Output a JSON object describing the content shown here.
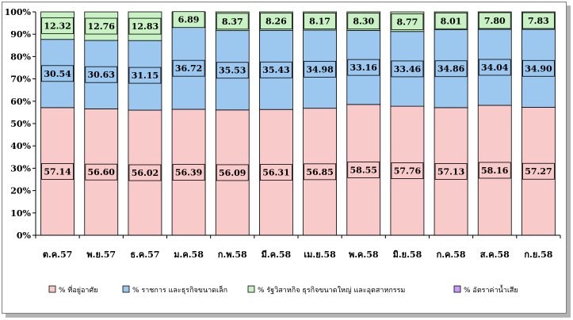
{
  "chart_data": {
    "type": "bar",
    "stacked": true,
    "percent": true,
    "title": "",
    "xlabel": "",
    "ylabel": "",
    "ylim": [
      0,
      100
    ],
    "yticks": [
      "0%",
      "10%",
      "20%",
      "30%",
      "40%",
      "50%",
      "60%",
      "70%",
      "80%",
      "90%",
      "100%"
    ],
    "categories": [
      "ต.ค.57",
      "พ.ย.57",
      "ธ.ค.57",
      "ม.ค.58",
      "ก.พ.58",
      "มี.ค.58",
      "เม.ย.58",
      "พ.ค.58",
      "มิ.ย.58",
      "ก.ค.58",
      "ส.ค.58",
      "ก.ย.58"
    ],
    "series": [
      {
        "name": "% ที่อยู่อาศัย",
        "color": "#f9caca",
        "values": [
          57.14,
          56.6,
          56.02,
          56.39,
          56.09,
          56.31,
          56.85,
          58.55,
          57.76,
          57.13,
          58.16,
          57.27
        ]
      },
      {
        "name": "% ราชการ และธุรกิจขนาดเล็ก",
        "color": "#9cc8f0",
        "values": [
          30.54,
          30.63,
          31.15,
          36.72,
          35.53,
          35.43,
          34.98,
          33.16,
          33.46,
          34.86,
          34.04,
          34.9
        ]
      },
      {
        "name": "% รัฐวิสาหกิจ ธุรกิจขนาดใหญ่ และอุตสาหกรรม",
        "color": "#c9f2c4",
        "values": [
          12.32,
          12.76,
          12.83,
          6.89,
          8.37,
          8.26,
          8.17,
          8.3,
          8.77,
          8.01,
          7.8,
          7.83
        ]
      },
      {
        "name": "% อัตราค่าน้ำเสีย",
        "color": "#cc99ff",
        "values": [
          0,
          0,
          0,
          0,
          0,
          0,
          0,
          0,
          0,
          0,
          0,
          0
        ]
      }
    ],
    "data_labels": [
      [
        "57.14",
        "56.60",
        "56.02",
        "56.39",
        "56.09",
        "56.31",
        "56.85",
        "58.55",
        "57.76",
        "57.13",
        "58.16",
        "57.27"
      ],
      [
        "30.54",
        "30.63",
        "31.15",
        "36.72",
        "35.53",
        "35.43",
        "34.98",
        "33.16",
        "33.46",
        "34.86",
        "34.04",
        "34.90"
      ],
      [
        "12.32",
        "12.76",
        "12.83",
        "6.89",
        "8.37",
        "8.26",
        "8.17",
        "8.30",
        "8.77",
        "8.01",
        "7.80",
        "7.83"
      ]
    ],
    "legend_position": "bottom",
    "grid": false
  }
}
